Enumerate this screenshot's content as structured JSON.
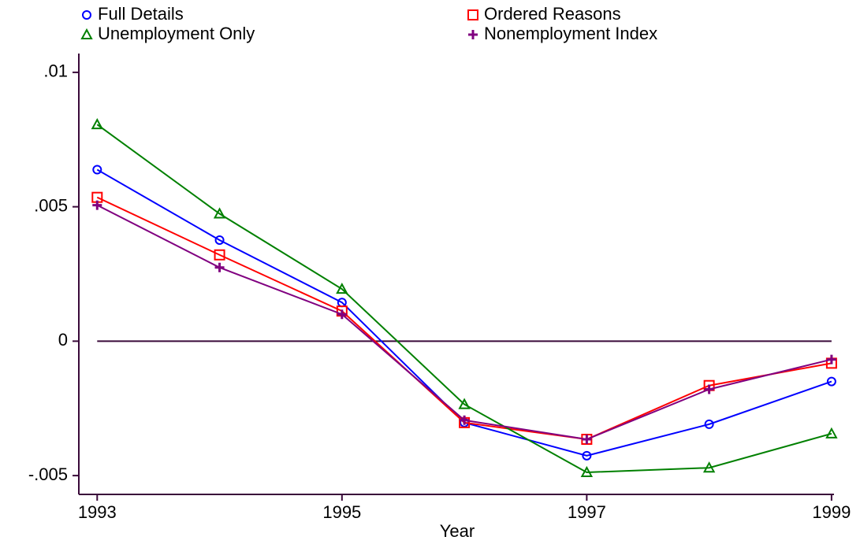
{
  "chart_data": {
    "type": "line",
    "x_label": "Year",
    "x": [
      1993,
      1994,
      1995,
      1996,
      1997,
      1998,
      1999
    ],
    "xlim": [
      1992.85,
      1999.02
    ],
    "xticks": [
      1993,
      1995,
      1997,
      1999
    ],
    "ylim": [
      -0.0057,
      0.0107
    ],
    "yticks": [
      {
        "value": -0.005,
        "label": "-.005"
      },
      0,
      {
        "value": 0.005,
        "label": ".005"
      },
      {
        "value": 0.01,
        "label": ".01"
      }
    ],
    "hline": 0,
    "hline_color": "#3a0a3a",
    "legend_position": "top",
    "series": [
      {
        "name": "Full Details",
        "color": "#0000ff",
        "marker": "circle",
        "values": [
          0.00638,
          0.00376,
          0.00144,
          -0.00303,
          -0.00426,
          -0.00309,
          -0.0015
        ]
      },
      {
        "name": "Ordered Reasons",
        "color": "#ff0000",
        "marker": "square",
        "values": [
          0.00535,
          0.00321,
          0.00112,
          -0.00303,
          -0.00365,
          -0.00165,
          -0.00082
        ]
      },
      {
        "name": "Unemployment Only",
        "color": "#008000",
        "marker": "triangle",
        "values": [
          0.00806,
          0.00474,
          0.00194,
          -0.00235,
          -0.00488,
          -0.00471,
          -0.00344
        ]
      },
      {
        "name": "Nonemployment Index",
        "color": "#800080",
        "marker": "plus",
        "values": [
          0.00506,
          0.00274,
          0.001,
          -0.00294,
          -0.00365,
          -0.00179,
          -0.00068
        ]
      }
    ]
  }
}
